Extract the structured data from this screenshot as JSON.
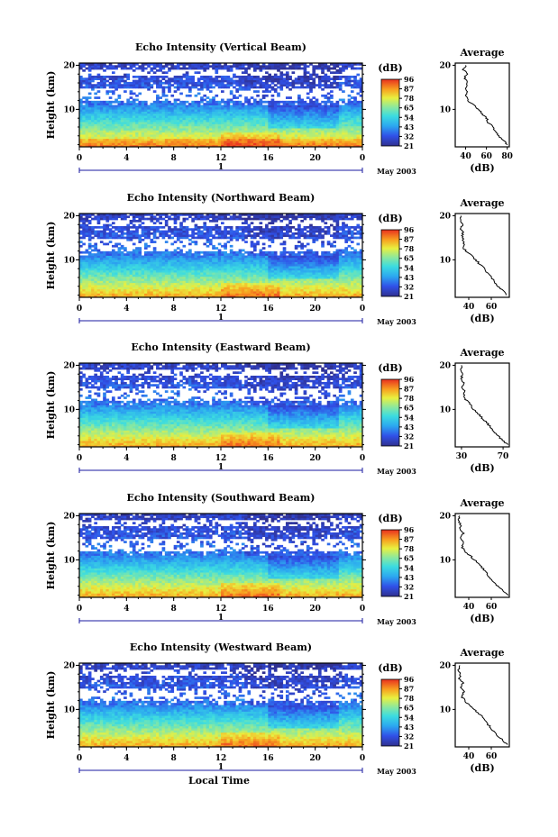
{
  "chart_data": [
    {
      "type": "heatmap",
      "title": "Echo Intensity (Vertical Beam)",
      "ylabel": "Height (km)",
      "yticks": [
        "20",
        "10"
      ],
      "xticks": [
        "0",
        "4",
        "8",
        "12",
        "16",
        "20",
        "0"
      ],
      "xlim": [
        0,
        24
      ],
      "ylim": [
        1.5,
        20.5
      ],
      "day_label": "1",
      "date_label": "May 2003",
      "colorbar": {
        "unit": "(dB)",
        "ticks": [
          "96",
          "87",
          "78",
          "65",
          "54",
          "43",
          "32",
          "21"
        ],
        "range": [
          21,
          96
        ]
      },
      "average": {
        "title": "Average",
        "xlabel": "(dB)",
        "xticks": [
          "40",
          "60",
          "80"
        ],
        "xlim": [
          30,
          82
        ],
        "yticks": [
          "20",
          "10"
        ],
        "profile": [
          [
            80,
            2
          ],
          [
            76,
            3
          ],
          [
            72,
            4
          ],
          [
            69,
            5
          ],
          [
            66,
            6
          ],
          [
            62,
            7
          ],
          [
            60,
            8
          ],
          [
            56,
            9
          ],
          [
            52,
            10
          ],
          [
            48,
            11
          ],
          [
            42,
            12
          ],
          [
            40,
            13
          ],
          [
            41,
            14
          ],
          [
            40,
            15
          ],
          [
            42,
            16
          ],
          [
            39,
            17
          ],
          [
            41,
            18
          ],
          [
            38,
            19
          ],
          [
            40,
            20
          ]
        ]
      }
    },
    {
      "type": "heatmap",
      "title": "Echo Intensity (Northward Beam)",
      "ylabel": "Height (km)",
      "yticks": [
        "20",
        "10"
      ],
      "xticks": [
        "0",
        "4",
        "8",
        "12",
        "16",
        "20",
        "0"
      ],
      "xlim": [
        0,
        24
      ],
      "ylim": [
        1.5,
        20.5
      ],
      "day_label": "1",
      "date_label": "May 2003",
      "colorbar": {
        "unit": "(dB)",
        "ticks": [
          "96",
          "87",
          "78",
          "65",
          "54",
          "43",
          "32",
          "21"
        ],
        "range": [
          21,
          96
        ]
      },
      "average": {
        "title": "Average",
        "xlabel": "(dB)",
        "xticks": [
          "40",
          "60"
        ],
        "xlim": [
          28,
          76
        ],
        "yticks": [
          "20",
          "10"
        ],
        "profile": [
          [
            74,
            2
          ],
          [
            70,
            3
          ],
          [
            66,
            4
          ],
          [
            63,
            5
          ],
          [
            60,
            6
          ],
          [
            57,
            7
          ],
          [
            54,
            8
          ],
          [
            50,
            9
          ],
          [
            46,
            10
          ],
          [
            42,
            11
          ],
          [
            37,
            12
          ],
          [
            35,
            13
          ],
          [
            36,
            14
          ],
          [
            34,
            15
          ],
          [
            35,
            16
          ],
          [
            33,
            17
          ],
          [
            34,
            18
          ],
          [
            32,
            19
          ],
          [
            33,
            20
          ]
        ]
      }
    },
    {
      "type": "heatmap",
      "title": "Echo Intensity (Eastward Beam)",
      "ylabel": "Height (km)",
      "yticks": [
        "20",
        "10"
      ],
      "xticks": [
        "0",
        "4",
        "8",
        "12",
        "16",
        "20",
        "0"
      ],
      "xlim": [
        0,
        24
      ],
      "ylim": [
        1.5,
        20.5
      ],
      "day_label": "1",
      "date_label": "May 2003",
      "colorbar": {
        "unit": "(dB)",
        "ticks": [
          "96",
          "87",
          "78",
          "65",
          "54",
          "43",
          "32",
          "21"
        ],
        "range": [
          21,
          96
        ]
      },
      "average": {
        "title": "Average",
        "xlabel": "(dB)",
        "xticks": [
          "30",
          "70"
        ],
        "xlim": [
          24,
          76
        ],
        "yticks": [
          "20",
          "10"
        ],
        "profile": [
          [
            74,
            2
          ],
          [
            70,
            3
          ],
          [
            65,
            4
          ],
          [
            61,
            5
          ],
          [
            58,
            6
          ],
          [
            54,
            7
          ],
          [
            50,
            8
          ],
          [
            46,
            9
          ],
          [
            42,
            10
          ],
          [
            39,
            11
          ],
          [
            35,
            12
          ],
          [
            32,
            13
          ],
          [
            33,
            14
          ],
          [
            31,
            15
          ],
          [
            32,
            16
          ],
          [
            30,
            17
          ],
          [
            31,
            18
          ],
          [
            29,
            19
          ],
          [
            30,
            20
          ]
        ]
      }
    },
    {
      "type": "heatmap",
      "title": "Echo Intensity (Southward Beam)",
      "ylabel": "Height (km)",
      "yticks": [
        "20",
        "10"
      ],
      "xticks": [
        "0",
        "4",
        "8",
        "12",
        "16",
        "20",
        "0"
      ],
      "xlim": [
        0,
        24
      ],
      "ylim": [
        1.5,
        20.5
      ],
      "day_label": "1",
      "date_label": "May 2003",
      "colorbar": {
        "unit": "(dB)",
        "ticks": [
          "96",
          "87",
          "78",
          "65",
          "54",
          "43",
          "32",
          "21"
        ],
        "range": [
          21,
          96
        ]
      },
      "average": {
        "title": "Average",
        "xlabel": "(dB)",
        "xticks": [
          "40",
          "60"
        ],
        "xlim": [
          28,
          76
        ],
        "yticks": [
          "20",
          "10"
        ],
        "profile": [
          [
            74,
            2
          ],
          [
            70,
            3
          ],
          [
            66,
            4
          ],
          [
            62,
            5
          ],
          [
            59,
            6
          ],
          [
            56,
            7
          ],
          [
            53,
            8
          ],
          [
            49,
            9
          ],
          [
            45,
            10
          ],
          [
            41,
            11
          ],
          [
            36,
            12
          ],
          [
            34,
            13
          ],
          [
            36,
            14
          ],
          [
            33,
            15
          ],
          [
            35,
            16
          ],
          [
            32,
            17
          ],
          [
            33,
            18
          ],
          [
            31,
            19
          ],
          [
            32,
            20
          ]
        ]
      }
    },
    {
      "type": "heatmap",
      "title": "Echo Intensity (Westward Beam)",
      "ylabel": "Height (km)",
      "yticks": [
        "20",
        "10"
      ],
      "xticks": [
        "0",
        "4",
        "8",
        "12",
        "16",
        "20",
        "0"
      ],
      "xlim": [
        0,
        24
      ],
      "ylim": [
        1.5,
        20.5
      ],
      "day_label": "1",
      "date_label": "May 2003",
      "xlabel": "Local Time",
      "colorbar": {
        "unit": "(dB)",
        "ticks": [
          "96",
          "87",
          "78",
          "65",
          "54",
          "43",
          "32",
          "21"
        ],
        "range": [
          21,
          96
        ]
      },
      "average": {
        "title": "Average",
        "xlabel": "(dB)",
        "xticks": [
          "40",
          "60"
        ],
        "xlim": [
          28,
          76
        ],
        "yticks": [
          "20",
          "10"
        ],
        "profile": [
          [
            74,
            2
          ],
          [
            70,
            3
          ],
          [
            66,
            4
          ],
          [
            62,
            5
          ],
          [
            59,
            6
          ],
          [
            56,
            7
          ],
          [
            53,
            8
          ],
          [
            49,
            9
          ],
          [
            45,
            10
          ],
          [
            41,
            11
          ],
          [
            36,
            12
          ],
          [
            34,
            13
          ],
          [
            36,
            14
          ],
          [
            33,
            15
          ],
          [
            35,
            16
          ],
          [
            32,
            17
          ],
          [
            33,
            18
          ],
          [
            31,
            19
          ],
          [
            32,
            20
          ]
        ]
      }
    }
  ]
}
